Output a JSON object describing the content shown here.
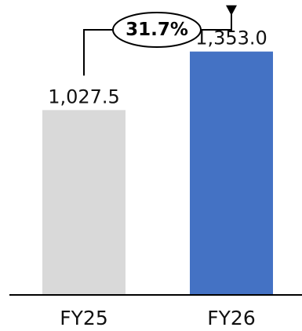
{
  "chart_data": {
    "type": "bar",
    "title": "",
    "xlabel": "",
    "ylabel": "",
    "categories": [
      "FY25",
      "FY26"
    ],
    "values": [
      1027.5,
      1353.0
    ],
    "value_labels": [
      "1,027.5",
      "1,353.0"
    ],
    "bar_colors": [
      "#d9d9d9",
      "#4472c4"
    ],
    "ylim": [
      0,
      1500
    ],
    "grid": false,
    "legend": "none",
    "annotation": {
      "type": "growth-arrow",
      "from": "FY25",
      "to": "FY26",
      "label": "31.7%"
    }
  },
  "colors": {
    "axis": "#000000",
    "text": "#111111",
    "connector": "#000000"
  }
}
